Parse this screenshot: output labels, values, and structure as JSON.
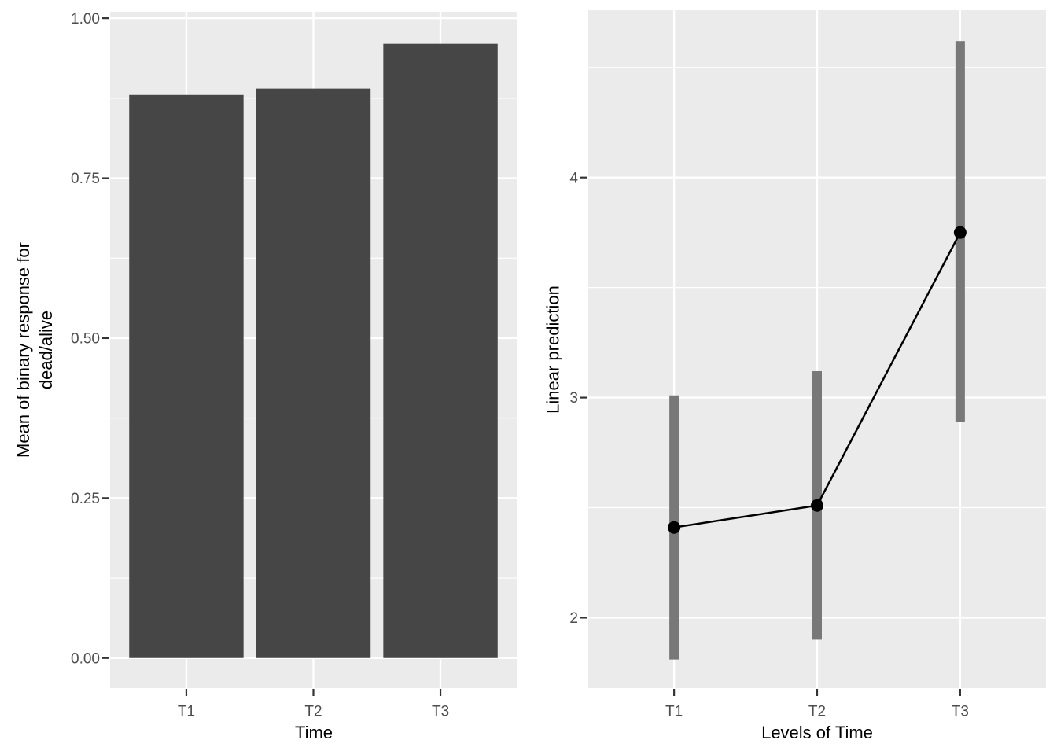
{
  "page": {
    "background": "#ffffff"
  },
  "styles": {
    "panel_bg": "#ebebeb",
    "grid_color": "#ffffff",
    "bar_fill": "#464646",
    "errorbar_color": "#787878",
    "point_color": "#000000",
    "line_color": "#000000",
    "tick_mark_color": "#333333",
    "tick_label_color": "#4d4d4d",
    "axis_title_color": "#000000"
  },
  "chart_data": [
    {
      "id": "mean-binary-response-bars",
      "type": "bar",
      "title": "",
      "xlabel": "Time",
      "ylabel_lines": [
        "Mean of binary response for",
        "dead/alive"
      ],
      "categories": [
        "T1",
        "T2",
        "T3"
      ],
      "values": [
        0.88,
        0.89,
        0.96
      ],
      "ylim": [
        -0.047,
        1.01
      ],
      "yticks": [
        0,
        0.25,
        0.5,
        0.75,
        1
      ],
      "ytick_labels": [
        "0.00",
        "0.25",
        "0.50",
        "0.75",
        "1.00"
      ],
      "grid": true,
      "legend": false
    },
    {
      "id": "linear-prediction-pointrange",
      "type": "line",
      "subtype": "pointrange",
      "title": "",
      "xlabel": "Levels of Time",
      "ylabel_lines": [
        "Linear prediction"
      ],
      "categories": [
        "T1",
        "T2",
        "T3"
      ],
      "values": [
        2.41,
        2.51,
        3.75
      ],
      "ci_low": [
        1.81,
        1.9,
        2.89
      ],
      "ci_high": [
        3.01,
        3.12,
        4.62
      ],
      "ylim": [
        1.68,
        4.76
      ],
      "yticks": [
        2,
        3,
        4
      ],
      "ytick_labels": [
        "2",
        "3",
        "4"
      ],
      "grid": true,
      "legend": false
    }
  ]
}
